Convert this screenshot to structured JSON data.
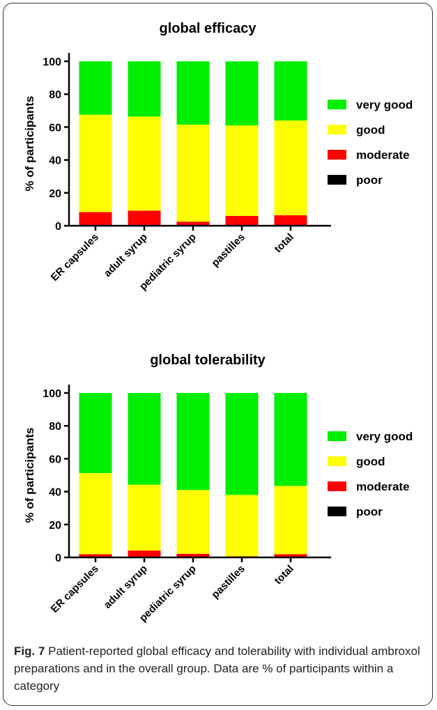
{
  "chart_data": [
    {
      "type": "bar",
      "stacked": true,
      "title": "global efficacy",
      "xlabel": "",
      "ylabel": "% of participants",
      "ylim": [
        0,
        100
      ],
      "yticks": [
        0,
        20,
        40,
        60,
        80,
        100
      ],
      "categories": [
        "ER capsules",
        "adult syrup",
        "pediatric syrup",
        "pastilles",
        "total"
      ],
      "legend_position": "right",
      "series": [
        {
          "name": "poor",
          "color": "#000000",
          "values": [
            0.5,
            0.5,
            0.3,
            0.3,
            0.4
          ]
        },
        {
          "name": "moderate",
          "color": "#ff0000",
          "values": [
            7.8,
            8.7,
            2.2,
            5.7,
            6.0
          ]
        },
        {
          "name": "good",
          "color": "#ffff00",
          "values": [
            59.2,
            57.2,
            59.0,
            55.0,
            57.6
          ]
        },
        {
          "name": "very good",
          "color": "#00ee00",
          "values": [
            32.5,
            33.6,
            38.5,
            39.0,
            36.0
          ]
        }
      ]
    },
    {
      "type": "bar",
      "stacked": true,
      "title": "global tolerability",
      "xlabel": "",
      "ylabel": "% of participants",
      "ylim": [
        0,
        100
      ],
      "yticks": [
        0,
        20,
        40,
        60,
        80,
        100
      ],
      "categories": [
        "ER capsules",
        "adult syrup",
        "pediatric syrup",
        "pastilles",
        "total"
      ],
      "legend_position": "right",
      "series": [
        {
          "name": "poor",
          "color": "#000000",
          "values": [
            0.3,
            0.3,
            0.2,
            0.2,
            0.2
          ]
        },
        {
          "name": "moderate",
          "color": "#ff0000",
          "values": [
            1.7,
            3.9,
            2.0,
            0.5,
            1.8
          ]
        },
        {
          "name": "good",
          "color": "#ffff00",
          "values": [
            49.3,
            40.0,
            38.8,
            37.3,
            41.5
          ]
        },
        {
          "name": "very good",
          "color": "#00ee00",
          "values": [
            48.7,
            55.8,
            59.0,
            62.0,
            56.5
          ]
        }
      ]
    }
  ],
  "caption": {
    "label": "Fig. 7",
    "text": " Patient-reported global efficacy and tolerability with individual ambroxol preparations and in the overall group. Data are % of participants within a category"
  }
}
